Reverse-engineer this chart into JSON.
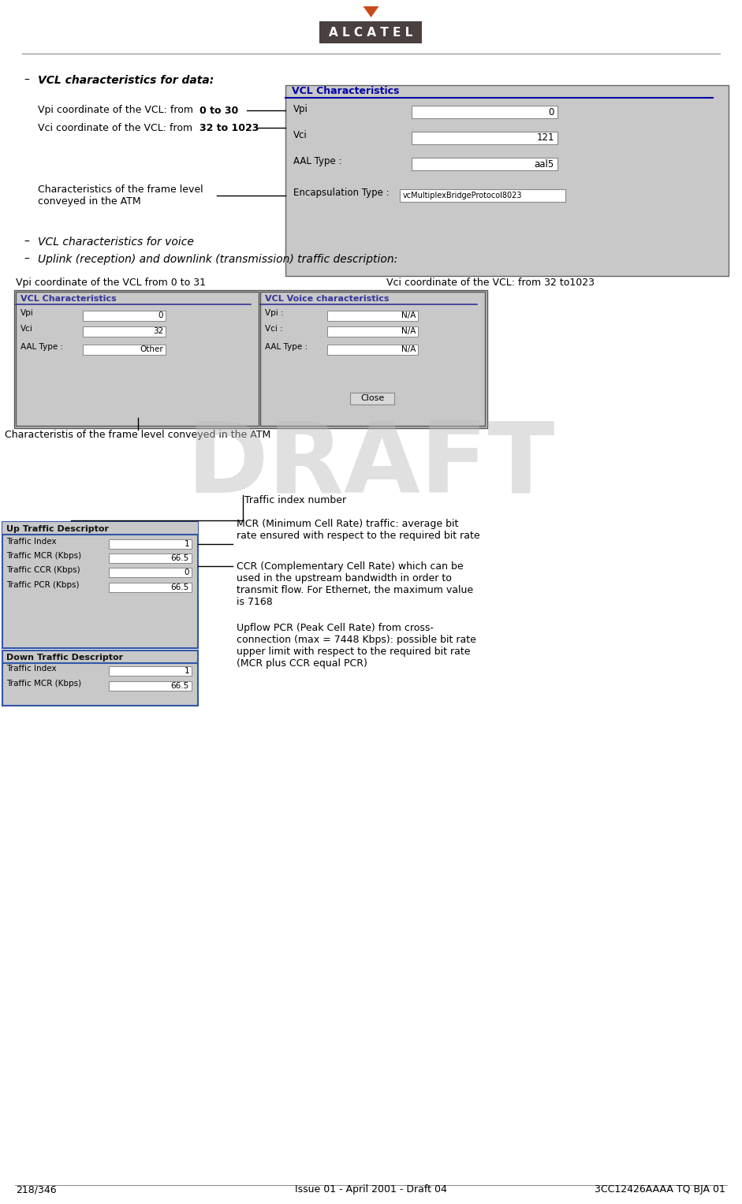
{
  "page_bg": "#ffffff",
  "footer_text_left": "218/346",
  "footer_text_center": "Issue 01 - April 2001 - Draft 04",
  "footer_text_right": "3CC12426AAAA TQ BJA 01",
  "alcatel_logo_color": "#4a4040",
  "triangle_color": "#c84a1a",
  "bullet1": "VCL characteristics for data:",
  "bullet2": "VCL characteristics for voice",
  "bullet3": "Uplink (reception) and downlink (transmission) traffic description:",
  "vcl_char_title": "VCL Characteristics",
  "vcl_char_title_color": "#0000aa",
  "vcl_panel_bg": "#c8c8c8",
  "vcl_fields": [
    "Vpi",
    "Vci",
    "AAL Type :"
  ],
  "vcl_values": [
    "0",
    "121",
    "aal5"
  ],
  "vcl_encap_label": "Encapsulation Type :",
  "vcl_encap_value": "vcMultiplexBridgeProtocol8023",
  "label_vpi_data": "Vpi coordinate of the VCL: from ",
  "label_vpi_bold": "0 to 30",
  "label_vci_data": "Vci coordinate of the VCL: from ",
  "label_vci_bold": "32 to 1023",
  "label_frame": "Characteristics of the frame level\nconveyed in the ATM",
  "label_vpi_voice": "Vpi coordinate of the VCL from 0 to 31",
  "label_vci_voice": "Vci coordinate of the VCL: from 32 to1023",
  "label_frame_voice": "Characteristis of the frame level conveyed in the ATM",
  "label_traffic_idx": "Traffic index number",
  "label_mcr": "MCR (Minimum Cell Rate) traffic: average bit\nrate ensured with respect to the required bit rate",
  "label_ccr": "CCR (Complementary Cell Rate) which can be\nused in the upstream bandwidth in order to\ntransmit flow. For Ethernet, the maximum value\nis 7168",
  "label_pcr": "Upflow PCR (Peak Cell Rate) from cross-\nconnection (max = 7448 Kbps): possible bit rate\nupper limit with respect to the required bit rate\n(MCR plus CCR equal PCR)",
  "vcl_char2_title": "VCL Characteristics",
  "vcl_voice_title": "VCL Voice characteristics",
  "vcl2_fields": [
    "Vpi",
    "Vci",
    "AAL Type :"
  ],
  "vcl2_values": [
    "0",
    "32",
    "Other"
  ],
  "vcl_voice_fields": [
    "Vpi :",
    "Vci :",
    "AAL Type :"
  ],
  "vcl_voice_values": [
    "N/A",
    "N/A",
    "N/A"
  ],
  "up_traffic_title": "Up Traffic Descriptor",
  "up_traffic_fields": [
    "Traffic Index",
    "Traffic MCR (Kbps)",
    "Traffic CCR (Kbps)",
    "Traffic PCR (Kbps)"
  ],
  "up_traffic_values": [
    "1",
    "66.5",
    "0",
    "66.5"
  ],
  "down_traffic_title": "Down Traffic Descriptor",
  "down_traffic_fields": [
    "Traffic Index",
    "Traffic MCR (Kbps)"
  ],
  "down_traffic_values": [
    "1",
    "66.5"
  ],
  "close_btn": "Close"
}
